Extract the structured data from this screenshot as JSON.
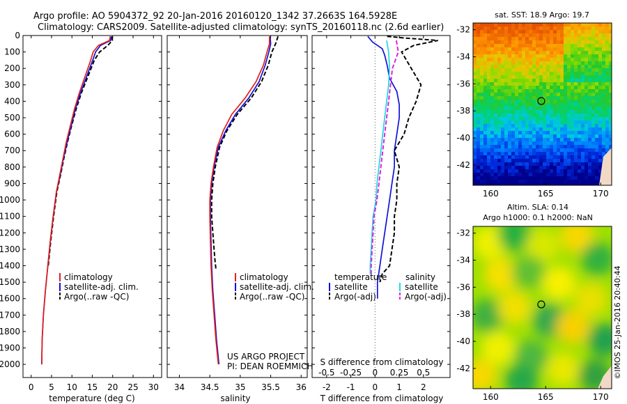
{
  "header": {
    "line1": "Argo profile: AO 5904372_92 20-Jan-2016 20160120_1342 37.2663S 164.5928E",
    "line2": "Climatology: CARS2009. Satellite-adjusted climatology: synTS_20160118.nc (2.6d earlier)"
  },
  "footer": {
    "project": "US ARGO PROJECT",
    "pi": "PI: DEAN ROEMMICH",
    "imos": "©IMOS 25-Jan-2016 20:40:44"
  },
  "colors": {
    "climatology": "#e0201a",
    "satellite": "#1010d8",
    "argo": "#000000",
    "salinity_sat": "#20d8e0",
    "salinity_argo": "#e020e0"
  },
  "chart_data": [
    {
      "id": "temperature",
      "type": "line",
      "xlabel": "temperature (deg C)",
      "ylabel": "",
      "xlim": [
        -2,
        32
      ],
      "ylim": [
        2080,
        0
      ],
      "xticks": [
        0,
        5,
        10,
        15,
        20,
        25,
        30
      ],
      "yticks": [
        0,
        100,
        200,
        300,
        400,
        500,
        600,
        700,
        800,
        900,
        1000,
        1100,
        1200,
        1300,
        1400,
        1500,
        1600,
        1700,
        1800,
        1900,
        2000
      ],
      "legend": [
        "climatology",
        "satellite-adj. clim.",
        "Argo(..raw -QC)"
      ],
      "series": [
        {
          "name": "climatology",
          "style": "solid",
          "color": "#e0201a",
          "x": [
            19.4,
            19.2,
            16.5,
            15.2,
            14.6,
            13.2,
            11.8,
            10.6,
            9.6,
            8.6,
            7.8,
            7.0,
            6.2,
            5.4,
            4.7,
            4.1,
            3.5,
            3.0,
            2.7,
            2.6
          ],
          "y": [
            5,
            30,
            60,
            100,
            150,
            250,
            350,
            450,
            550,
            650,
            750,
            850,
            950,
            1100,
            1250,
            1400,
            1550,
            1700,
            1850,
            2000
          ]
        },
        {
          "name": "satellite-adj. clim.",
          "style": "solid",
          "color": "#1010d8",
          "x": [
            19.7,
            19.5,
            17.0,
            15.8,
            15.1,
            13.6,
            12.1,
            10.8,
            9.8,
            8.8,
            7.9,
            7.1,
            6.2,
            5.4,
            4.7,
            4.1,
            3.5,
            3.0,
            2.7,
            2.6
          ],
          "y": [
            5,
            30,
            60,
            100,
            150,
            250,
            350,
            450,
            550,
            650,
            750,
            850,
            950,
            1100,
            1250,
            1400,
            1550,
            1700,
            1850,
            2000
          ]
        },
        {
          "name": "Argo(..raw -QC)",
          "style": "dashed",
          "color": "#000000",
          "x": [
            19.9,
            19.9,
            18.8,
            16.8,
            15.5,
            13.9,
            12.3,
            11.0,
            9.9,
            8.9,
            8.0,
            7.2,
            6.3,
            5.5,
            4.8,
            4.2
          ],
          "y": [
            5,
            30,
            60,
            100,
            150,
            250,
            350,
            450,
            550,
            650,
            750,
            850,
            950,
            1100,
            1250,
            1400
          ]
        }
      ]
    },
    {
      "id": "salinity",
      "type": "line",
      "xlabel": "salinity",
      "ylabel": "",
      "xlim": [
        33.8,
        36.1
      ],
      "ylim": [
        2080,
        0
      ],
      "xticks": [
        34,
        34.5,
        35,
        35.5,
        36
      ],
      "legend": [
        "climatology",
        "satellite-adj. clim.",
        "Argo(..raw -QC)"
      ],
      "series": [
        {
          "name": "climatology",
          "style": "solid",
          "color": "#e0201a",
          "x": [
            35.48,
            35.48,
            35.44,
            35.38,
            35.26,
            35.08,
            34.86,
            34.72,
            34.62,
            34.56,
            34.52,
            34.5,
            34.5,
            34.51,
            34.52,
            34.54,
            34.57,
            34.6,
            34.64
          ],
          "y": [
            5,
            50,
            100,
            180,
            280,
            380,
            480,
            580,
            680,
            800,
            900,
            1000,
            1100,
            1250,
            1400,
            1550,
            1700,
            1850,
            2000
          ]
        },
        {
          "name": "satellite-adj. clim.",
          "style": "solid",
          "color": "#1010d8",
          "x": [
            35.49,
            35.5,
            35.47,
            35.41,
            35.31,
            35.14,
            34.92,
            34.76,
            34.64,
            34.57,
            34.53,
            34.51,
            34.51,
            34.52,
            34.53,
            34.55,
            34.58,
            34.61,
            34.65
          ],
          "y": [
            5,
            50,
            100,
            180,
            280,
            380,
            480,
            580,
            680,
            800,
            900,
            1000,
            1100,
            1250,
            1400,
            1550,
            1700,
            1850,
            2000
          ]
        },
        {
          "name": "Argo(..raw -QC)",
          "style": "dashed",
          "color": "#000000",
          "x": [
            35.62,
            35.58,
            35.52,
            35.46,
            35.35,
            35.18,
            34.95,
            34.78,
            34.66,
            34.59,
            34.55,
            34.53,
            34.53,
            34.56,
            34.58,
            34.6
          ],
          "y": [
            5,
            50,
            100,
            180,
            280,
            380,
            480,
            580,
            680,
            800,
            900,
            1000,
            1100,
            1250,
            1350,
            1420
          ]
        }
      ],
      "annotation": [
        "US ARGO PROJECT",
        "PI: DEAN ROEMMICH"
      ]
    },
    {
      "id": "difference",
      "type": "line",
      "xlabel_bottom": "T difference from climatology",
      "xlabel_top": "S difference from climatology",
      "xlim": [
        -2.6,
        3.1
      ],
      "ylim": [
        2080,
        0
      ],
      "xticks_T": [
        -2,
        -1,
        0,
        1,
        2
      ],
      "xticks_S": [
        "-0.5",
        "-0.25",
        "0",
        "0.25",
        "0.5"
      ],
      "legend_temperature": [
        "temperature",
        "satellite",
        "Argo(-adj)"
      ],
      "legend_salinity": [
        "salinity",
        "satellite",
        "Argo(-adj)"
      ],
      "series": [
        {
          "name": "satellite",
          "group": "temperature",
          "style": "solid",
          "color": "#1010d8",
          "x": [
            -0.3,
            -0.1,
            0.3,
            0.4,
            0.5,
            0.6,
            0.9,
            1.0,
            1.0,
            0.9,
            0.8,
            0.8,
            0.7,
            0.6,
            0.5,
            0.4,
            0.3,
            0.2,
            0.1,
            0.1
          ],
          "y": [
            5,
            40,
            80,
            120,
            180,
            260,
            340,
            420,
            500,
            600,
            700,
            800,
            900,
            1000,
            1100,
            1200,
            1300,
            1400,
            1500,
            1600
          ]
        },
        {
          "name": "Argo(-adj)",
          "group": "temperature",
          "style": "dashed",
          "color": "#000000",
          "x": [
            0.5,
            1.2,
            2.6,
            1.6,
            1.1,
            1.5,
            1.9,
            1.7,
            1.4,
            1.2,
            0.8,
            1.0,
            0.9,
            0.9,
            0.8,
            0.8,
            0.7,
            0.6,
            0.3,
            0.2
          ],
          "y": [
            5,
            15,
            30,
            60,
            100,
            200,
            300,
            400,
            500,
            600,
            700,
            800,
            900,
            1000,
            1100,
            1200,
            1300,
            1400,
            1450,
            1500
          ]
        },
        {
          "name": "satellite",
          "group": "salinity",
          "style": "solid",
          "color": "#20d8e0",
          "x": [
            0.12,
            0.14,
            0.15,
            0.14,
            0.12,
            0.1,
            0.08,
            0.06,
            0.04,
            0.02,
            0.01,
            -0.02,
            -0.03,
            -0.04,
            -0.05,
            -0.05
          ],
          "y": [
            30,
            100,
            200,
            300,
            400,
            500,
            600,
            700,
            800,
            900,
            1000,
            1100,
            1200,
            1300,
            1400,
            1450
          ]
        },
        {
          "name": "Argo(-adj)",
          "group": "salinity",
          "style": "dashed",
          "color": "#e020e0",
          "x": [
            0.22,
            0.24,
            0.18,
            0.16,
            0.14,
            0.12,
            0.1,
            0.08,
            0.06,
            0.04,
            0.02,
            -0.01,
            -0.02,
            -0.03,
            -0.04,
            -0.04
          ],
          "y": [
            30,
            100,
            200,
            300,
            400,
            500,
            600,
            700,
            800,
            900,
            1000,
            1100,
            1200,
            1300,
            1400,
            1450
          ]
        }
      ]
    },
    {
      "id": "sst_map",
      "type": "heatmap",
      "title": "sat. SST: 18.9 Argo: 19.7",
      "xlim": [
        158.4,
        171
      ],
      "ylim": [
        -43.5,
        -31.5
      ],
      "xticks": [
        160,
        165,
        170
      ],
      "yticks": [
        -32,
        -34,
        -36,
        -38,
        -40,
        -42
      ],
      "marker": {
        "lon": 164.6,
        "lat": -37.27
      }
    },
    {
      "id": "sla_map",
      "type": "heatmap",
      "title_line1": "Altim. SLA: 0.14",
      "title_line2": "Argo h1000: 0.1 h2000: NaN",
      "xlim": [
        158.4,
        171
      ],
      "ylim": [
        -43.5,
        -31.5
      ],
      "xticks": [
        160,
        165,
        170
      ],
      "yticks": [
        -32,
        -34,
        -36,
        -38,
        -40,
        -42
      ],
      "marker": {
        "lon": 164.6,
        "lat": -37.27
      }
    }
  ]
}
